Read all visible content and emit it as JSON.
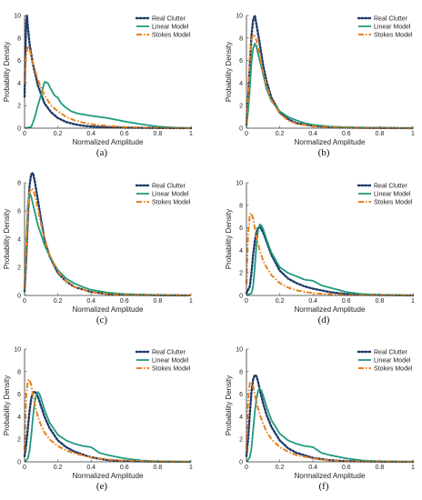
{
  "colors": {
    "real": "#1f3a68",
    "linear": "#1f9a7e",
    "stokes": "#e8801d"
  },
  "chart_data": [
    {
      "panel_label": "(a)",
      "type": "line",
      "xlabel": "Normalized Amplitude",
      "ylabel": "Probability Density",
      "xlim": [
        0,
        1
      ],
      "ylim": [
        0,
        10
      ],
      "xticks": [
        "0",
        "0.2",
        "0.4",
        "0.6",
        "0.8",
        "1"
      ],
      "yticks": [
        "0",
        "2",
        "4",
        "6",
        "8",
        "10"
      ],
      "legend_position": "top-right",
      "series": [
        {
          "name": "Real Clutter",
          "style": "dotted",
          "x": [
            0,
            0.005,
            0.01,
            0.015,
            0.02,
            0.03,
            0.05,
            0.08,
            0.12,
            0.16,
            0.2,
            0.25,
            0.3,
            0.35,
            0.4,
            0.5,
            0.6,
            0.7,
            0.8,
            0.9,
            1.0
          ],
          "y": [
            2.8,
            6.5,
            9.5,
            10.0,
            9.0,
            7.5,
            5.7,
            3.8,
            2.2,
            1.4,
            0.9,
            0.55,
            0.35,
            0.22,
            0.15,
            0.08,
            0.05,
            0.03,
            0.02,
            0.01,
            0.0
          ]
        },
        {
          "name": "Linear Model",
          "style": "solid",
          "x": [
            0,
            0.04,
            0.06,
            0.08,
            0.1,
            0.12,
            0.14,
            0.16,
            0.18,
            0.2,
            0.22,
            0.25,
            0.28,
            0.32,
            0.36,
            0.4,
            0.45,
            0.5,
            0.6,
            0.7,
            0.8,
            0.9,
            1.0
          ],
          "y": [
            0,
            0.1,
            0.9,
            2.0,
            3.0,
            4.1,
            4.0,
            3.4,
            2.9,
            2.7,
            2.2,
            1.8,
            1.5,
            1.3,
            1.2,
            1.1,
            1.0,
            0.9,
            0.6,
            0.35,
            0.15,
            0.05,
            0
          ]
        },
        {
          "name": "Stokes Model",
          "style": "dashdot",
          "x": [
            0,
            0.01,
            0.02,
            0.03,
            0.05,
            0.08,
            0.12,
            0.16,
            0.2,
            0.25,
            0.3,
            0.35,
            0.4,
            0.5,
            0.6,
            0.7,
            0.8,
            0.9,
            1.0
          ],
          "y": [
            4.0,
            6.5,
            7.3,
            7.0,
            5.8,
            4.3,
            2.9,
            2.0,
            1.5,
            1.0,
            0.7,
            0.5,
            0.35,
            0.2,
            0.1,
            0.05,
            0.02,
            0.01,
            0
          ]
        }
      ]
    },
    {
      "panel_label": "(b)",
      "type": "line",
      "xlabel": "Normalized Amplitude",
      "ylabel": "Probability Density",
      "xlim": [
        0,
        1
      ],
      "ylim": [
        0,
        10
      ],
      "xticks": [
        "0",
        "0.2",
        "0.4",
        "0.6",
        "0.8",
        "1"
      ],
      "yticks": [
        "0",
        "2",
        "4",
        "6",
        "8",
        "10"
      ],
      "legend_position": "top-right",
      "series": [
        {
          "name": "Real Clutter",
          "style": "dotted",
          "x": [
            0,
            0.01,
            0.02,
            0.03,
            0.04,
            0.05,
            0.06,
            0.08,
            0.1,
            0.12,
            0.15,
            0.2,
            0.25,
            0.3,
            0.4,
            0.5,
            0.6,
            0.8,
            1.0
          ],
          "y": [
            0.3,
            2.5,
            5.5,
            8.2,
            9.6,
            10.0,
            9.2,
            7.5,
            5.6,
            4.2,
            2.7,
            1.4,
            0.8,
            0.45,
            0.2,
            0.1,
            0.05,
            0.02,
            0
          ]
        },
        {
          "name": "Linear Model",
          "style": "solid",
          "x": [
            0,
            0.01,
            0.02,
            0.03,
            0.04,
            0.05,
            0.06,
            0.08,
            0.1,
            0.12,
            0.15,
            0.2,
            0.25,
            0.3,
            0.35,
            0.4,
            0.5,
            0.6,
            0.8,
            1.0
          ],
          "y": [
            0.2,
            1.5,
            3.5,
            5.8,
            7.1,
            7.5,
            7.2,
            6.0,
            4.8,
            3.5,
            2.4,
            1.5,
            1.0,
            0.7,
            0.45,
            0.3,
            0.15,
            0.08,
            0.03,
            0
          ]
        },
        {
          "name": "Stokes Model",
          "style": "dashdot",
          "x": [
            0,
            0.01,
            0.02,
            0.03,
            0.04,
            0.05,
            0.06,
            0.08,
            0.1,
            0.12,
            0.15,
            0.2,
            0.25,
            0.3,
            0.4,
            0.5,
            0.6,
            0.8,
            1.0
          ],
          "y": [
            0.4,
            3.0,
            6.2,
            7.8,
            8.3,
            8.2,
            7.8,
            6.5,
            5.0,
            3.8,
            2.5,
            1.3,
            0.7,
            0.4,
            0.18,
            0.08,
            0.04,
            0.01,
            0
          ]
        }
      ]
    },
    {
      "panel_label": "(c)",
      "type": "line",
      "xlabel": "Normalized Amplitude",
      "ylabel": "Probability Density",
      "xlim": [
        0,
        1
      ],
      "ylim": [
        0,
        8
      ],
      "xticks": [
        "0",
        "0.2",
        "0.4",
        "0.6",
        "0.8",
        "1"
      ],
      "yticks": [
        "0",
        "2",
        "4",
        "6",
        "8"
      ],
      "legend_position": "top-right",
      "series": [
        {
          "name": "Real Clutter",
          "style": "dotted",
          "x": [
            0,
            0.01,
            0.02,
            0.03,
            0.04,
            0.05,
            0.06,
            0.08,
            0.1,
            0.12,
            0.15,
            0.2,
            0.25,
            0.3,
            0.4,
            0.5,
            0.6,
            0.8,
            1.0
          ],
          "y": [
            0.3,
            2.5,
            5.5,
            7.8,
            8.6,
            8.7,
            8.2,
            6.8,
            5.3,
            4.0,
            2.8,
            1.6,
            1.0,
            0.6,
            0.25,
            0.1,
            0.05,
            0.02,
            0
          ]
        },
        {
          "name": "Linear Model",
          "style": "solid",
          "x": [
            0,
            0.01,
            0.02,
            0.03,
            0.04,
            0.05,
            0.06,
            0.08,
            0.1,
            0.12,
            0.15,
            0.2,
            0.25,
            0.3,
            0.35,
            0.4,
            0.5,
            0.6,
            0.8,
            1.0
          ],
          "y": [
            0.3,
            3.5,
            6.5,
            7.3,
            7.0,
            6.5,
            6.0,
            5.0,
            4.3,
            3.6,
            2.8,
            1.8,
            1.2,
            0.85,
            0.6,
            0.4,
            0.2,
            0.1,
            0.03,
            0
          ]
        },
        {
          "name": "Stokes Model",
          "style": "dashdot",
          "x": [
            0,
            0.01,
            0.02,
            0.03,
            0.04,
            0.05,
            0.06,
            0.08,
            0.1,
            0.12,
            0.15,
            0.2,
            0.25,
            0.3,
            0.4,
            0.5,
            0.6,
            0.8,
            1.0
          ],
          "y": [
            0.5,
            3.5,
            6.3,
            7.3,
            7.6,
            7.5,
            7.2,
            6.2,
            5.0,
            4.0,
            2.9,
            1.7,
            1.0,
            0.6,
            0.25,
            0.1,
            0.05,
            0.02,
            0
          ]
        }
      ]
    },
    {
      "panel_label": "(d)",
      "type": "line",
      "xlabel": "Normalized Amplitude",
      "ylabel": "Probability Density",
      "xlim": [
        0,
        1
      ],
      "ylim": [
        0,
        10
      ],
      "xticks": [
        "0",
        "0.2",
        "0.4",
        "0.6",
        "0.8",
        "1"
      ],
      "yticks": [
        "0",
        "2",
        "4",
        "6",
        "8",
        "10"
      ],
      "legend_position": "top-right",
      "series": [
        {
          "name": "Real Clutter",
          "style": "dotted",
          "x": [
            0,
            0.02,
            0.03,
            0.04,
            0.05,
            0.06,
            0.07,
            0.08,
            0.1,
            0.12,
            0.15,
            0.2,
            0.25,
            0.3,
            0.35,
            0.4,
            0.5,
            0.6,
            0.8,
            1.0
          ],
          "y": [
            0.2,
            0.8,
            2.0,
            3.6,
            4.8,
            5.6,
            6.0,
            6.1,
            5.6,
            4.8,
            3.6,
            2.2,
            1.5,
            1.1,
            0.8,
            0.6,
            0.3,
            0.12,
            0.04,
            0
          ]
        },
        {
          "name": "Linear Model",
          "style": "solid",
          "x": [
            0,
            0.03,
            0.04,
            0.05,
            0.06,
            0.07,
            0.08,
            0.09,
            0.1,
            0.12,
            0.15,
            0.2,
            0.25,
            0.3,
            0.35,
            0.4,
            0.45,
            0.5,
            0.55,
            0.6,
            0.7,
            0.8,
            1.0
          ],
          "y": [
            0,
            0.2,
            0.8,
            2.5,
            4.5,
            5.8,
            6.3,
            6.2,
            5.9,
            5.0,
            3.8,
            2.5,
            2.0,
            1.7,
            1.4,
            1.3,
            0.9,
            0.7,
            0.5,
            0.3,
            0.12,
            0.05,
            0
          ]
        },
        {
          "name": "Stokes Model",
          "style": "dashdot",
          "x": [
            0,
            0.005,
            0.01,
            0.02,
            0.03,
            0.04,
            0.05,
            0.06,
            0.08,
            0.1,
            0.12,
            0.15,
            0.2,
            0.25,
            0.3,
            0.4,
            0.5,
            0.6,
            0.8,
            1.0
          ],
          "y": [
            1.0,
            3.5,
            5.5,
            7.2,
            7.3,
            6.8,
            6.0,
            5.2,
            4.0,
            3.1,
            2.5,
            1.8,
            1.1,
            0.7,
            0.45,
            0.2,
            0.1,
            0.05,
            0.02,
            0
          ]
        }
      ]
    },
    {
      "panel_label": "(e)",
      "type": "line",
      "xlabel": "Normalized Amplitude",
      "ylabel": "Probability Density",
      "xlim": [
        0,
        1
      ],
      "ylim": [
        0,
        10
      ],
      "xticks": [
        "0",
        "0.2",
        "0.4",
        "0.6",
        "0.8",
        "1"
      ],
      "yticks": [
        "0",
        "2",
        "4",
        "6",
        "8",
        "10"
      ],
      "legend_position": "top-right",
      "series": [
        {
          "name": "Real Clutter",
          "style": "dotted",
          "x": [
            0,
            0.01,
            0.02,
            0.03,
            0.04,
            0.05,
            0.06,
            0.07,
            0.08,
            0.1,
            0.12,
            0.15,
            0.2,
            0.25,
            0.3,
            0.4,
            0.5,
            0.6,
            0.8,
            1.0
          ],
          "y": [
            0.5,
            1.5,
            3.0,
            4.5,
            5.6,
            6.1,
            6.2,
            6.1,
            5.8,
            4.9,
            4.0,
            3.0,
            1.9,
            1.3,
            0.9,
            0.4,
            0.15,
            0.06,
            0.02,
            0
          ]
        },
        {
          "name": "Linear Model",
          "style": "solid",
          "x": [
            0,
            0.02,
            0.03,
            0.04,
            0.05,
            0.06,
            0.07,
            0.08,
            0.09,
            0.1,
            0.12,
            0.15,
            0.2,
            0.25,
            0.3,
            0.35,
            0.4,
            0.45,
            0.5,
            0.6,
            0.7,
            0.8,
            1.0
          ],
          "y": [
            0,
            0.3,
            1.0,
            2.3,
            3.9,
            5.2,
            5.9,
            6.2,
            6.0,
            5.6,
            4.6,
            3.5,
            2.4,
            1.9,
            1.6,
            1.4,
            1.3,
            0.8,
            0.6,
            0.3,
            0.12,
            0.05,
            0
          ]
        },
        {
          "name": "Stokes Model",
          "style": "dashdot",
          "x": [
            0,
            0.005,
            0.01,
            0.02,
            0.03,
            0.04,
            0.05,
            0.06,
            0.08,
            0.1,
            0.12,
            0.15,
            0.2,
            0.25,
            0.3,
            0.4,
            0.5,
            0.6,
            0.8,
            1.0
          ],
          "y": [
            1.0,
            3.8,
            5.8,
            7.2,
            7.3,
            6.8,
            6.0,
            5.2,
            4.0,
            3.2,
            2.6,
            2.0,
            1.4,
            1.0,
            0.75,
            0.4,
            0.2,
            0.1,
            0.03,
            0
          ]
        }
      ]
    },
    {
      "panel_label": "(f)",
      "type": "line",
      "xlabel": "Normalized Amplitude",
      "ylabel": "Probability Density",
      "xlim": [
        0,
        1
      ],
      "ylim": [
        0,
        10
      ],
      "xticks": [
        "0",
        "0.2",
        "0.4",
        "0.6",
        "0.8",
        "1"
      ],
      "yticks": [
        "0",
        "2",
        "4",
        "6",
        "8",
        "10"
      ],
      "legend_position": "top-right",
      "series": [
        {
          "name": "Real Clutter",
          "style": "dotted",
          "x": [
            0,
            0.01,
            0.02,
            0.03,
            0.04,
            0.05,
            0.06,
            0.07,
            0.08,
            0.1,
            0.12,
            0.15,
            0.2,
            0.25,
            0.3,
            0.4,
            0.5,
            0.6,
            0.8,
            1.0
          ],
          "y": [
            0.5,
            2.0,
            4.2,
            6.2,
            7.3,
            7.7,
            7.6,
            7.1,
            6.4,
            5.2,
            4.2,
            3.1,
            1.9,
            1.2,
            0.8,
            0.35,
            0.15,
            0.06,
            0.02,
            0
          ]
        },
        {
          "name": "Linear Model",
          "style": "solid",
          "x": [
            0,
            0.02,
            0.03,
            0.04,
            0.05,
            0.06,
            0.07,
            0.08,
            0.09,
            0.1,
            0.12,
            0.15,
            0.2,
            0.25,
            0.3,
            0.35,
            0.4,
            0.45,
            0.5,
            0.6,
            0.7,
            0.8,
            1.0
          ],
          "y": [
            0,
            0.4,
            1.2,
            2.8,
            4.4,
            5.6,
            6.3,
            6.5,
            6.3,
            5.9,
            4.9,
            3.7,
            2.5,
            1.9,
            1.6,
            1.4,
            1.3,
            0.8,
            0.6,
            0.3,
            0.12,
            0.05,
            0
          ]
        },
        {
          "name": "Stokes Model",
          "style": "dashdot",
          "x": [
            0,
            0.005,
            0.01,
            0.02,
            0.03,
            0.04,
            0.05,
            0.06,
            0.08,
            0.1,
            0.12,
            0.15,
            0.2,
            0.25,
            0.3,
            0.4,
            0.5,
            0.6,
            0.8,
            1.0
          ],
          "y": [
            1.0,
            3.5,
            5.5,
            7.0,
            7.1,
            6.7,
            6.0,
            5.3,
            4.2,
            3.4,
            2.7,
            2.0,
            1.3,
            0.9,
            0.6,
            0.3,
            0.12,
            0.05,
            0.02,
            0
          ]
        }
      ]
    }
  ]
}
